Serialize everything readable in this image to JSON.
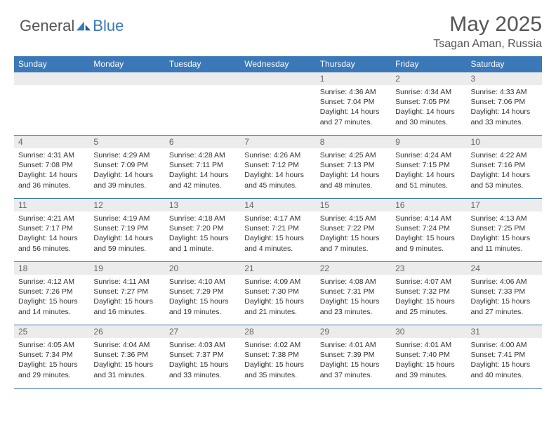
{
  "brand": {
    "part1": "General",
    "part2": "Blue"
  },
  "title": "May 2025",
  "location": "Tsagan Aman, Russia",
  "colors": {
    "header_bg": "#3b78b8",
    "header_text": "#ffffff",
    "daynum_bg": "#ececec",
    "border": "#3b78b8",
    "body_text": "#333333"
  },
  "weekdays": [
    "Sunday",
    "Monday",
    "Tuesday",
    "Wednesday",
    "Thursday",
    "Friday",
    "Saturday"
  ],
  "weeks": [
    [
      {
        "n": "",
        "sunrise": "",
        "sunset": "",
        "daylight": ""
      },
      {
        "n": "",
        "sunrise": "",
        "sunset": "",
        "daylight": ""
      },
      {
        "n": "",
        "sunrise": "",
        "sunset": "",
        "daylight": ""
      },
      {
        "n": "",
        "sunrise": "",
        "sunset": "",
        "daylight": ""
      },
      {
        "n": "1",
        "sunrise": "Sunrise: 4:36 AM",
        "sunset": "Sunset: 7:04 PM",
        "daylight": "Daylight: 14 hours and 27 minutes."
      },
      {
        "n": "2",
        "sunrise": "Sunrise: 4:34 AM",
        "sunset": "Sunset: 7:05 PM",
        "daylight": "Daylight: 14 hours and 30 minutes."
      },
      {
        "n": "3",
        "sunrise": "Sunrise: 4:33 AM",
        "sunset": "Sunset: 7:06 PM",
        "daylight": "Daylight: 14 hours and 33 minutes."
      }
    ],
    [
      {
        "n": "4",
        "sunrise": "Sunrise: 4:31 AM",
        "sunset": "Sunset: 7:08 PM",
        "daylight": "Daylight: 14 hours and 36 minutes."
      },
      {
        "n": "5",
        "sunrise": "Sunrise: 4:29 AM",
        "sunset": "Sunset: 7:09 PM",
        "daylight": "Daylight: 14 hours and 39 minutes."
      },
      {
        "n": "6",
        "sunrise": "Sunrise: 4:28 AM",
        "sunset": "Sunset: 7:11 PM",
        "daylight": "Daylight: 14 hours and 42 minutes."
      },
      {
        "n": "7",
        "sunrise": "Sunrise: 4:26 AM",
        "sunset": "Sunset: 7:12 PM",
        "daylight": "Daylight: 14 hours and 45 minutes."
      },
      {
        "n": "8",
        "sunrise": "Sunrise: 4:25 AM",
        "sunset": "Sunset: 7:13 PM",
        "daylight": "Daylight: 14 hours and 48 minutes."
      },
      {
        "n": "9",
        "sunrise": "Sunrise: 4:24 AM",
        "sunset": "Sunset: 7:15 PM",
        "daylight": "Daylight: 14 hours and 51 minutes."
      },
      {
        "n": "10",
        "sunrise": "Sunrise: 4:22 AM",
        "sunset": "Sunset: 7:16 PM",
        "daylight": "Daylight: 14 hours and 53 minutes."
      }
    ],
    [
      {
        "n": "11",
        "sunrise": "Sunrise: 4:21 AM",
        "sunset": "Sunset: 7:17 PM",
        "daylight": "Daylight: 14 hours and 56 minutes."
      },
      {
        "n": "12",
        "sunrise": "Sunrise: 4:19 AM",
        "sunset": "Sunset: 7:19 PM",
        "daylight": "Daylight: 14 hours and 59 minutes."
      },
      {
        "n": "13",
        "sunrise": "Sunrise: 4:18 AM",
        "sunset": "Sunset: 7:20 PM",
        "daylight": "Daylight: 15 hours and 1 minute."
      },
      {
        "n": "14",
        "sunrise": "Sunrise: 4:17 AM",
        "sunset": "Sunset: 7:21 PM",
        "daylight": "Daylight: 15 hours and 4 minutes."
      },
      {
        "n": "15",
        "sunrise": "Sunrise: 4:15 AM",
        "sunset": "Sunset: 7:22 PM",
        "daylight": "Daylight: 15 hours and 7 minutes."
      },
      {
        "n": "16",
        "sunrise": "Sunrise: 4:14 AM",
        "sunset": "Sunset: 7:24 PM",
        "daylight": "Daylight: 15 hours and 9 minutes."
      },
      {
        "n": "17",
        "sunrise": "Sunrise: 4:13 AM",
        "sunset": "Sunset: 7:25 PM",
        "daylight": "Daylight: 15 hours and 11 minutes."
      }
    ],
    [
      {
        "n": "18",
        "sunrise": "Sunrise: 4:12 AM",
        "sunset": "Sunset: 7:26 PM",
        "daylight": "Daylight: 15 hours and 14 minutes."
      },
      {
        "n": "19",
        "sunrise": "Sunrise: 4:11 AM",
        "sunset": "Sunset: 7:27 PM",
        "daylight": "Daylight: 15 hours and 16 minutes."
      },
      {
        "n": "20",
        "sunrise": "Sunrise: 4:10 AM",
        "sunset": "Sunset: 7:29 PM",
        "daylight": "Daylight: 15 hours and 19 minutes."
      },
      {
        "n": "21",
        "sunrise": "Sunrise: 4:09 AM",
        "sunset": "Sunset: 7:30 PM",
        "daylight": "Daylight: 15 hours and 21 minutes."
      },
      {
        "n": "22",
        "sunrise": "Sunrise: 4:08 AM",
        "sunset": "Sunset: 7:31 PM",
        "daylight": "Daylight: 15 hours and 23 minutes."
      },
      {
        "n": "23",
        "sunrise": "Sunrise: 4:07 AM",
        "sunset": "Sunset: 7:32 PM",
        "daylight": "Daylight: 15 hours and 25 minutes."
      },
      {
        "n": "24",
        "sunrise": "Sunrise: 4:06 AM",
        "sunset": "Sunset: 7:33 PM",
        "daylight": "Daylight: 15 hours and 27 minutes."
      }
    ],
    [
      {
        "n": "25",
        "sunrise": "Sunrise: 4:05 AM",
        "sunset": "Sunset: 7:34 PM",
        "daylight": "Daylight: 15 hours and 29 minutes."
      },
      {
        "n": "26",
        "sunrise": "Sunrise: 4:04 AM",
        "sunset": "Sunset: 7:36 PM",
        "daylight": "Daylight: 15 hours and 31 minutes."
      },
      {
        "n": "27",
        "sunrise": "Sunrise: 4:03 AM",
        "sunset": "Sunset: 7:37 PM",
        "daylight": "Daylight: 15 hours and 33 minutes."
      },
      {
        "n": "28",
        "sunrise": "Sunrise: 4:02 AM",
        "sunset": "Sunset: 7:38 PM",
        "daylight": "Daylight: 15 hours and 35 minutes."
      },
      {
        "n": "29",
        "sunrise": "Sunrise: 4:01 AM",
        "sunset": "Sunset: 7:39 PM",
        "daylight": "Daylight: 15 hours and 37 minutes."
      },
      {
        "n": "30",
        "sunrise": "Sunrise: 4:01 AM",
        "sunset": "Sunset: 7:40 PM",
        "daylight": "Daylight: 15 hours and 39 minutes."
      },
      {
        "n": "31",
        "sunrise": "Sunrise: 4:00 AM",
        "sunset": "Sunset: 7:41 PM",
        "daylight": "Daylight: 15 hours and 40 minutes."
      }
    ]
  ]
}
